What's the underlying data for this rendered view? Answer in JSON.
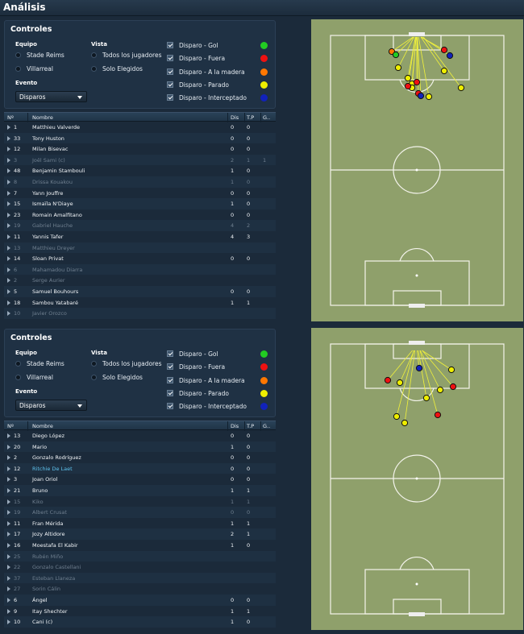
{
  "window": {
    "title": "Análisis"
  },
  "panels": [
    {
      "controls": {
        "title": "Controles",
        "team_label": "Equipo",
        "teams": [
          "Stade Reims",
          "Villarreal"
        ],
        "view_label": "Vista",
        "views": [
          "Todos los jugadores",
          "Solo Elegidos"
        ],
        "event_label": "Evento",
        "event_value": "Disparos",
        "legend": [
          {
            "label": "Disparo - Gol",
            "color": "#22cc22"
          },
          {
            "label": "Disparo - Fuera",
            "color": "#ee1111"
          },
          {
            "label": "Disparo - A la madera",
            "color": "#ff7700"
          },
          {
            "label": "Disparo - Parado",
            "color": "#eeee00"
          },
          {
            "label": "Disparo - Interceptado",
            "color": "#1122bb"
          }
        ]
      },
      "headers": [
        "Nº",
        "Nombre",
        "Dis",
        "T.P",
        "G.."
      ],
      "rows": [
        {
          "num": "1",
          "name": "Matthieu Valverde",
          "dis": "0",
          "tp": "0",
          "g": "",
          "style": "normal"
        },
        {
          "num": "33",
          "name": "Tony Huston",
          "dis": "0",
          "tp": "0",
          "g": "",
          "style": "normal"
        },
        {
          "num": "12",
          "name": "Milan Bisevac",
          "dis": "0",
          "tp": "0",
          "g": "",
          "style": "normal"
        },
        {
          "num": "3",
          "name": "Joël Sami (c)",
          "dis": "2",
          "tp": "1",
          "g": "1",
          "style": "dim"
        },
        {
          "num": "48",
          "name": "Benjamin Stambouli",
          "dis": "1",
          "tp": "0",
          "g": "",
          "style": "normal"
        },
        {
          "num": "8",
          "name": "Drissa Kouakou",
          "dis": "1",
          "tp": "0",
          "g": "",
          "style": "dim"
        },
        {
          "num": "7",
          "name": "Yann Jouffre",
          "dis": "0",
          "tp": "0",
          "g": "",
          "style": "normal"
        },
        {
          "num": "15",
          "name": "Ismaïla N'Diaye",
          "dis": "1",
          "tp": "0",
          "g": "",
          "style": "normal"
        },
        {
          "num": "23",
          "name": "Romain Amalfitano",
          "dis": "0",
          "tp": "0",
          "g": "",
          "style": "normal"
        },
        {
          "num": "19",
          "name": "Gabriel Hauche",
          "dis": "4",
          "tp": "2",
          "g": "",
          "style": "dim"
        },
        {
          "num": "11",
          "name": "Yannis Tafer",
          "dis": "4",
          "tp": "3",
          "g": "",
          "style": "normal"
        },
        {
          "num": "13",
          "name": "Matthieu Dreyer",
          "dis": "",
          "tp": "",
          "g": "",
          "style": "dim"
        },
        {
          "num": "14",
          "name": "Sloan Privat",
          "dis": "0",
          "tp": "0",
          "g": "",
          "style": "normal"
        },
        {
          "num": "6",
          "name": "Mahamadou Diarra",
          "dis": "",
          "tp": "",
          "g": "",
          "style": "dim"
        },
        {
          "num": "2",
          "name": "Serge Aurier",
          "dis": "",
          "tp": "",
          "g": "",
          "style": "dim"
        },
        {
          "num": "5",
          "name": "Samuel Bouhours",
          "dis": "0",
          "tp": "0",
          "g": "",
          "style": "normal"
        },
        {
          "num": "18",
          "name": "Sambou Yatabaré",
          "dis": "1",
          "tp": "1",
          "g": "",
          "style": "normal"
        },
        {
          "num": "10",
          "name": "Javier Orozco",
          "dis": "",
          "tp": "",
          "g": "",
          "style": "dim"
        }
      ]
    },
    {
      "controls": {
        "title": "Controles",
        "team_label": "Equipo",
        "teams": [
          "Stade Reims",
          "Villarreal"
        ],
        "view_label": "Vista",
        "views": [
          "Todos los jugadores",
          "Solo Elegidos"
        ],
        "event_label": "Evento",
        "event_value": "Disparos",
        "legend": [
          {
            "label": "Disparo - Gol",
            "color": "#22cc22"
          },
          {
            "label": "Disparo - Fuera",
            "color": "#ee1111"
          },
          {
            "label": "Disparo - A la madera",
            "color": "#ff7700"
          },
          {
            "label": "Disparo - Parado",
            "color": "#eeee00"
          },
          {
            "label": "Disparo - Interceptado",
            "color": "#1122bb"
          }
        ]
      },
      "headers": [
        "Nº",
        "Nombre",
        "Dis",
        "T.P",
        "G.."
      ],
      "rows": [
        {
          "num": "13",
          "name": "Diego López",
          "dis": "0",
          "tp": "0",
          "g": "",
          "style": "normal"
        },
        {
          "num": "20",
          "name": "Mario",
          "dis": "1",
          "tp": "0",
          "g": "",
          "style": "normal"
        },
        {
          "num": "2",
          "name": "Gonzalo Rodríguez",
          "dis": "0",
          "tp": "0",
          "g": "",
          "style": "normal"
        },
        {
          "num": "12",
          "name": "Ritchie De Laet",
          "dis": "0",
          "tp": "0",
          "g": "",
          "style": "link"
        },
        {
          "num": "3",
          "name": "Joan Oriol",
          "dis": "0",
          "tp": "0",
          "g": "",
          "style": "normal"
        },
        {
          "num": "21",
          "name": "Bruno",
          "dis": "1",
          "tp": "1",
          "g": "",
          "style": "normal"
        },
        {
          "num": "15",
          "name": "Kiko",
          "dis": "1",
          "tp": "1",
          "g": "",
          "style": "dim"
        },
        {
          "num": "19",
          "name": "Albert Crusat",
          "dis": "0",
          "tp": "0",
          "g": "",
          "style": "dim"
        },
        {
          "num": "11",
          "name": "Fran Mérida",
          "dis": "1",
          "tp": "1",
          "g": "",
          "style": "normal"
        },
        {
          "num": "17",
          "name": "Jozy Altidore",
          "dis": "2",
          "tp": "1",
          "g": "",
          "style": "normal"
        },
        {
          "num": "16",
          "name": "Moestafa El Kabir",
          "dis": "1",
          "tp": "0",
          "g": "",
          "style": "normal"
        },
        {
          "num": "25",
          "name": "Rubén Miño",
          "dis": "",
          "tp": "",
          "g": "",
          "style": "dim"
        },
        {
          "num": "22",
          "name": "Gonzalo Castellani",
          "dis": "",
          "tp": "",
          "g": "",
          "style": "dim"
        },
        {
          "num": "37",
          "name": "Esteban Llaneza",
          "dis": "",
          "tp": "",
          "g": "",
          "style": "dim"
        },
        {
          "num": "27",
          "name": "Sorin Cálin",
          "dis": "",
          "tp": "",
          "g": "",
          "style": "dim"
        },
        {
          "num": "6",
          "name": "Ángel",
          "dis": "0",
          "tp": "0",
          "g": "",
          "style": "normal"
        },
        {
          "num": "9",
          "name": "Itay Shechter",
          "dis": "1",
          "tp": "1",
          "g": "",
          "style": "normal"
        },
        {
          "num": "10",
          "name": "Cani (c)",
          "dis": "1",
          "tp": "0",
          "g": "",
          "style": "normal"
        }
      ]
    }
  ]
}
